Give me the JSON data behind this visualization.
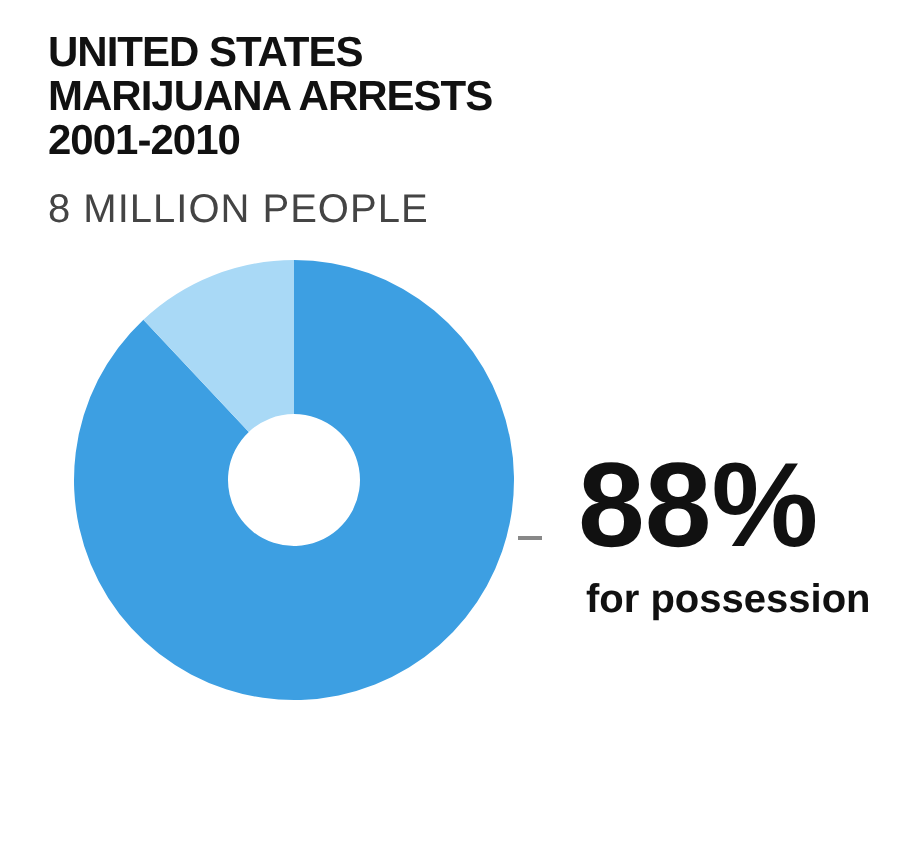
{
  "chart_data": {
    "type": "donut",
    "title": "UNITED STATES\nMARIJUANA ARRESTS\n2001-2010",
    "subtitle": "8 MILLION PEOPLE",
    "categories": [
      "for possession",
      null
    ],
    "values": [
      88,
      12
    ],
    "colors": [
      "#3d9fe2",
      "#a9d9f6"
    ],
    "value_labels": [
      "88%",
      null
    ],
    "legend": false
  }
}
